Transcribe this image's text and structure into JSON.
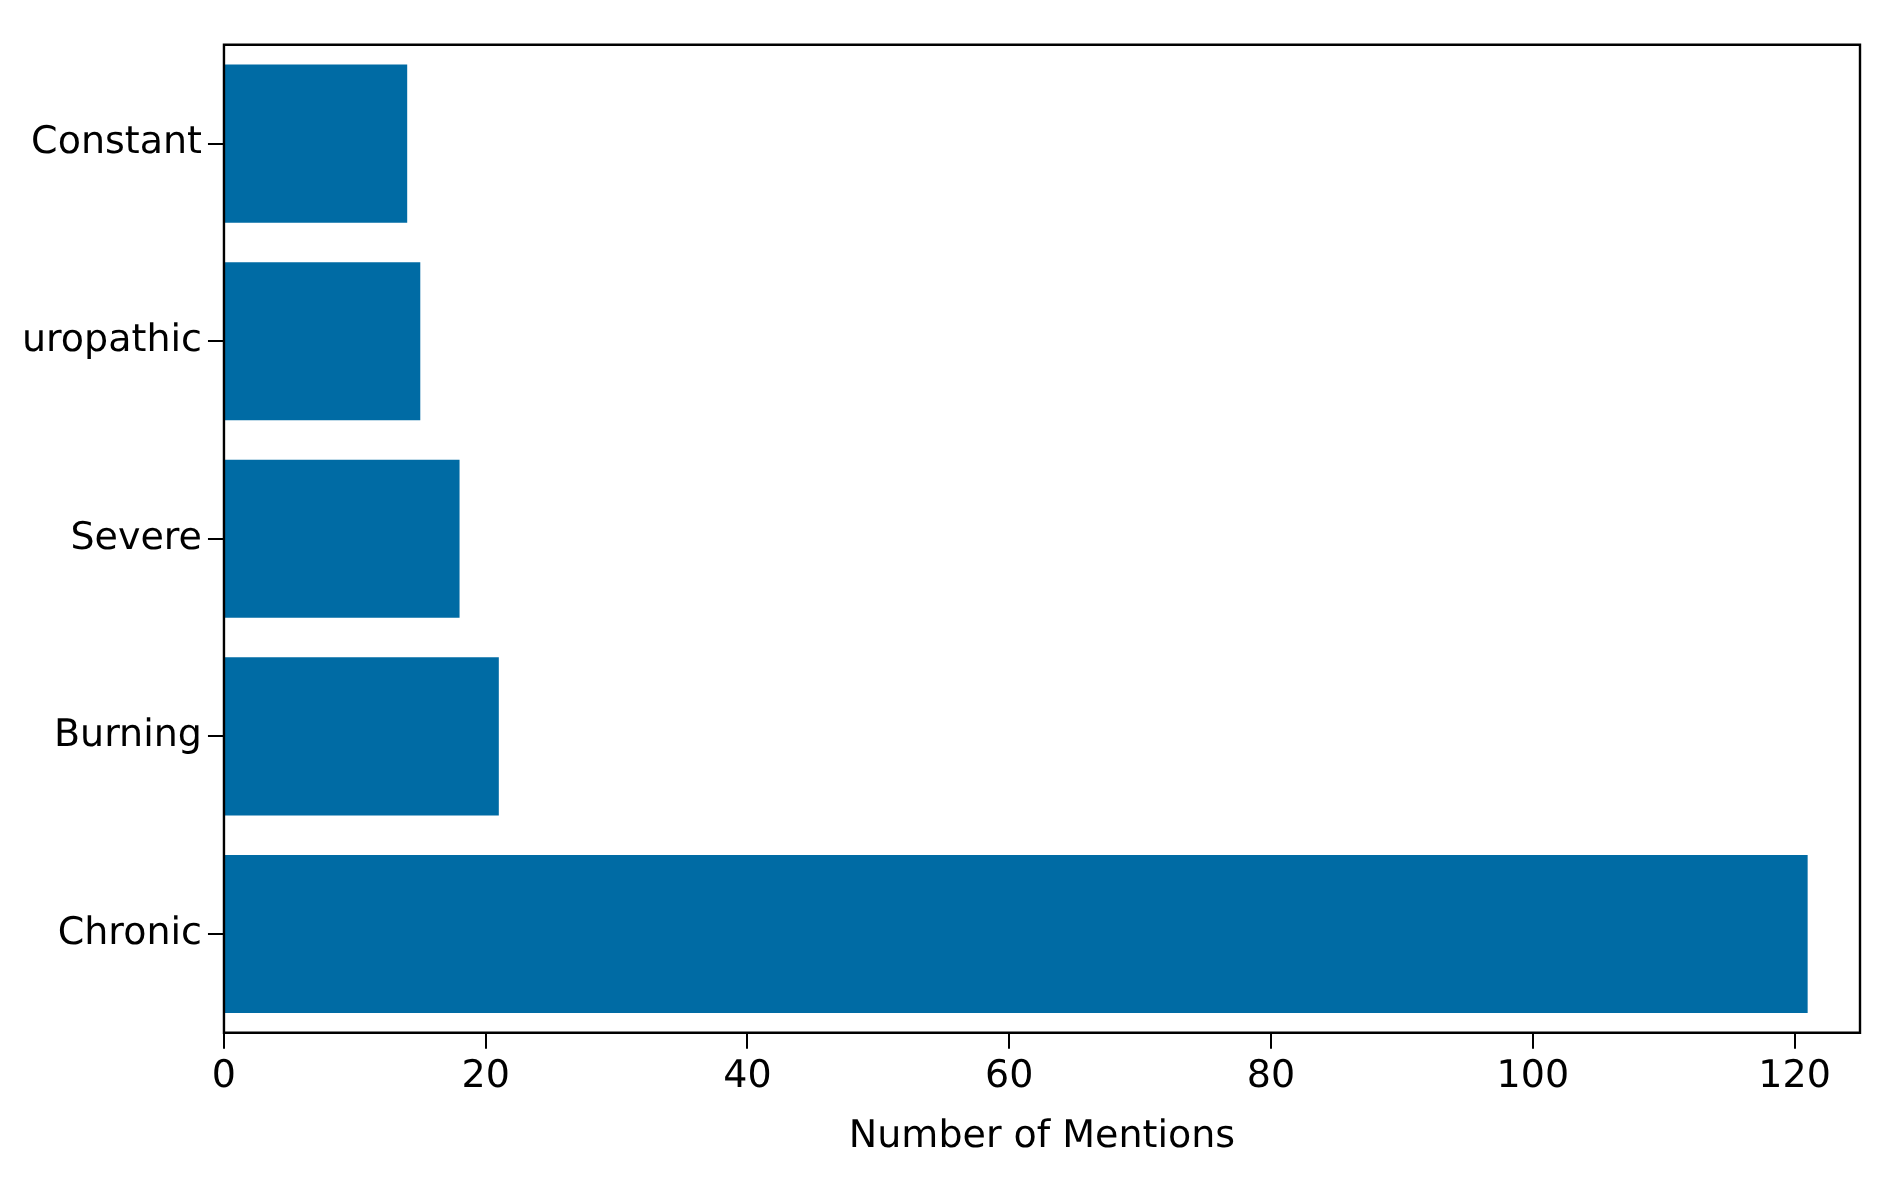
{
  "chart_data": {
    "type": "bar",
    "orientation": "horizontal",
    "xlabel": "Number of Mentions",
    "categories": [
      "Constant",
      "uropathic",
      "Severe",
      "Burning",
      "Chronic"
    ],
    "values": [
      14,
      15,
      18,
      21,
      121
    ],
    "color": "#006ba4",
    "xlim": [
      0,
      125
    ],
    "xticks": [
      0,
      20,
      40,
      60,
      80,
      100,
      120
    ],
    "grid": false,
    "legend": false
  }
}
